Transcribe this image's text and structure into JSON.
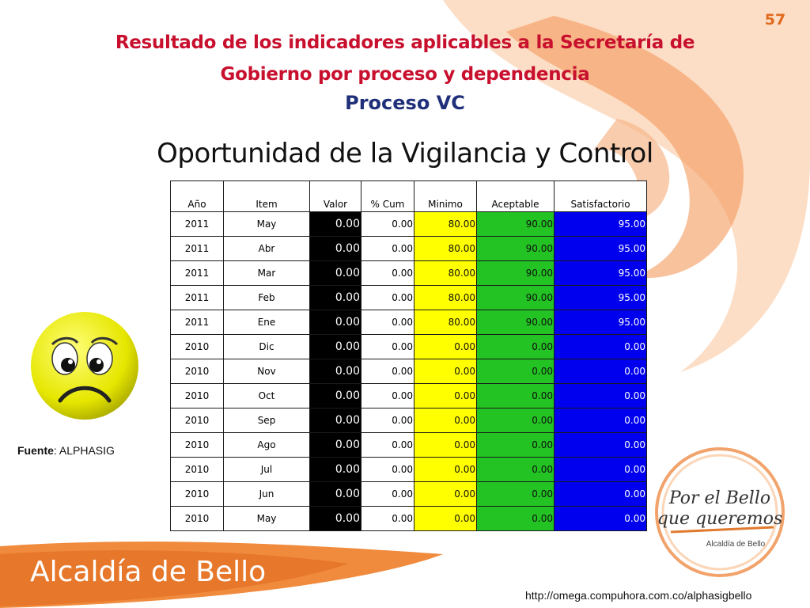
{
  "slide_number": "57",
  "title_line1": "Resultado de los indicadores aplicables a la Secretaría de",
  "title_line2": "Gobierno por proceso y dependencia",
  "process": "Proceso VC",
  "subtitle": "Oportunidad de la Vigilancia y Control",
  "table": {
    "headers": [
      "Año",
      "Item",
      "Valor",
      "% Cum",
      "Minimo",
      "Aceptable",
      "Satisfactorio"
    ],
    "rows": [
      [
        "2011",
        "May",
        "0.00",
        "0.00",
        "80.00",
        "90.00",
        "95.00"
      ],
      [
        "2011",
        "Abr",
        "0.00",
        "0.00",
        "80.00",
        "90.00",
        "95.00"
      ],
      [
        "2011",
        "Mar",
        "0.00",
        "0.00",
        "80.00",
        "90.00",
        "95.00"
      ],
      [
        "2011",
        "Feb",
        "0.00",
        "0.00",
        "80.00",
        "90.00",
        "95.00"
      ],
      [
        "2011",
        "Ene",
        "0.00",
        "0.00",
        "80.00",
        "90.00",
        "95.00"
      ],
      [
        "2010",
        "Dic",
        "0.00",
        "0.00",
        "0.00",
        "0.00",
        "0.00"
      ],
      [
        "2010",
        "Nov",
        "0.00",
        "0.00",
        "0.00",
        "0.00",
        "0.00"
      ],
      [
        "2010",
        "Oct",
        "0.00",
        "0.00",
        "0.00",
        "0.00",
        "0.00"
      ],
      [
        "2010",
        "Sep",
        "0.00",
        "0.00",
        "0.00",
        "0.00",
        "0.00"
      ],
      [
        "2010",
        "Ago",
        "0.00",
        "0.00",
        "0.00",
        "0.00",
        "0.00"
      ],
      [
        "2010",
        "Jul",
        "0.00",
        "0.00",
        "0.00",
        "0.00",
        "0.00"
      ],
      [
        "2010",
        "Jun",
        "0.00",
        "0.00",
        "0.00",
        "0.00",
        "0.00"
      ],
      [
        "2010",
        "May",
        "0.00",
        "0.00",
        "0.00",
        "0.00",
        "0.00"
      ]
    ]
  },
  "fuente_label": "Fuente",
  "fuente_value": ": ALPHASIG",
  "footer_brand": "Alcaldía de Bello",
  "url": "http://omega.compuhora.com.co/alphasigbello",
  "stamp": {
    "line1": "Por el Bello",
    "line2": "que queremos",
    "line3": "Alcaldía de Bello"
  },
  "colors": {
    "title_red": "#c8102e",
    "title_blue": "#1f2f7a",
    "accent_orange": "#e06a1e",
    "minimo": "#ffff00",
    "aceptable": "#22c322",
    "satisfactorio": "#0000ee"
  },
  "icons": {
    "sad_face": "sad-face-icon"
  }
}
